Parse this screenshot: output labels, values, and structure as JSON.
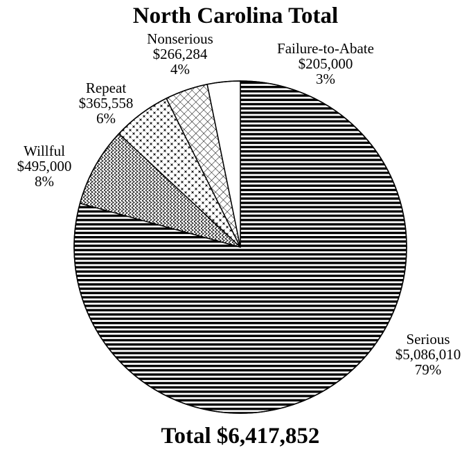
{
  "chart_data": {
    "type": "pie",
    "title": "North Carolina Total",
    "total_label": "Total $6,417,852",
    "slices": [
      {
        "name": "Serious",
        "value": 5086010,
        "amount": "$5,086,010",
        "percent": "79%",
        "pattern": "horizontal-lines"
      },
      {
        "name": "Willful",
        "value": 495000,
        "amount": "$495,000",
        "percent": "8%",
        "pattern": "zigzag"
      },
      {
        "name": "Repeat",
        "value": 365558,
        "amount": "$365,558",
        "percent": "6%",
        "pattern": "crosses"
      },
      {
        "name": "Nonserious",
        "value": 266284,
        "amount": "$266,284",
        "percent": "4%",
        "pattern": "grid"
      },
      {
        "name": "Failure-to-Abate",
        "value": 205000,
        "amount": "$205,000",
        "percent": "3%",
        "pattern": "solid-white"
      }
    ],
    "colors": {
      "stroke": "#000000",
      "fill": "#ffffff"
    }
  }
}
